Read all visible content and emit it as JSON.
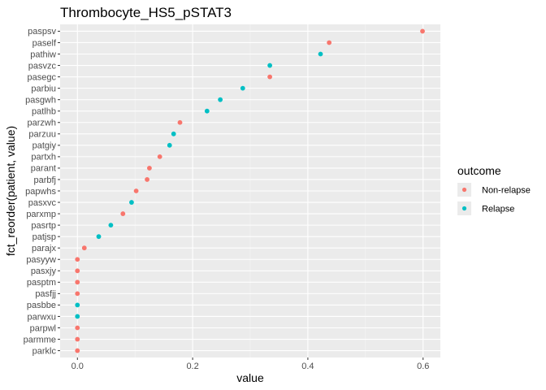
{
  "chart_data": {
    "type": "scatter",
    "title": "Thrombocyte_HS5_pSTAT3",
    "xlabel": "value",
    "ylabel": "fct_reorder(patient, value)",
    "xlim": [
      -0.03,
      0.63
    ],
    "xticks": [
      0.0,
      0.2,
      0.4,
      0.6
    ],
    "xtick_labels": [
      "0.0",
      "0.2",
      "0.4",
      "0.6"
    ],
    "grid": true,
    "legend": {
      "title": "outcome",
      "position": "right",
      "entries": [
        {
          "label": "Non-relapse",
          "color": "#F8766D"
        },
        {
          "label": "Relapse",
          "color": "#00BFC4"
        }
      ]
    },
    "categories": [
      "parklc",
      "parmme",
      "parpwl",
      "parwxu",
      "pasbbe",
      "pasfjj",
      "pasptm",
      "pasxjy",
      "pasyyw",
      "parajx",
      "patjsp",
      "pasrtp",
      "parxmp",
      "pasxvc",
      "papwhs",
      "parbfj",
      "parant",
      "partxh",
      "patgiy",
      "parzuu",
      "parzwh",
      "patlhb",
      "pasgwh",
      "parbiu",
      "pasegc",
      "pasvzc",
      "pathiw",
      "paself",
      "paspsv"
    ],
    "points": [
      {
        "patient": "paspsv",
        "value": 0.599,
        "outcome": "Non-relapse"
      },
      {
        "patient": "paself",
        "value": 0.437,
        "outcome": "Non-relapse"
      },
      {
        "patient": "pathiw",
        "value": 0.422,
        "outcome": "Relapse"
      },
      {
        "patient": "pasvzc",
        "value": 0.334,
        "outcome": "Relapse"
      },
      {
        "patient": "pasegc",
        "value": 0.334,
        "outcome": "Non-relapse"
      },
      {
        "patient": "parbiu",
        "value": 0.287,
        "outcome": "Relapse"
      },
      {
        "patient": "pasgwh",
        "value": 0.248,
        "outcome": "Relapse"
      },
      {
        "patient": "patlhb",
        "value": 0.225,
        "outcome": "Relapse"
      },
      {
        "patient": "parzwh",
        "value": 0.178,
        "outcome": "Non-relapse"
      },
      {
        "patient": "parzuu",
        "value": 0.167,
        "outcome": "Relapse"
      },
      {
        "patient": "patgiy",
        "value": 0.16,
        "outcome": "Relapse"
      },
      {
        "patient": "partxh",
        "value": 0.143,
        "outcome": "Non-relapse"
      },
      {
        "patient": "parant",
        "value": 0.125,
        "outcome": "Non-relapse"
      },
      {
        "patient": "parbfj",
        "value": 0.121,
        "outcome": "Non-relapse"
      },
      {
        "patient": "papwhs",
        "value": 0.102,
        "outcome": "Non-relapse"
      },
      {
        "patient": "pasxvc",
        "value": 0.094,
        "outcome": "Relapse"
      },
      {
        "patient": "parxmp",
        "value": 0.079,
        "outcome": "Non-relapse"
      },
      {
        "patient": "pasrtp",
        "value": 0.058,
        "outcome": "Relapse"
      },
      {
        "patient": "patjsp",
        "value": 0.037,
        "outcome": "Relapse"
      },
      {
        "patient": "parajx",
        "value": 0.012,
        "outcome": "Non-relapse"
      },
      {
        "patient": "pasyyw",
        "value": 0.0,
        "outcome": "Non-relapse"
      },
      {
        "patient": "pasxjy",
        "value": 0.0,
        "outcome": "Non-relapse"
      },
      {
        "patient": "pasptm",
        "value": 0.0,
        "outcome": "Non-relapse"
      },
      {
        "patient": "pasfjj",
        "value": 0.0,
        "outcome": "Non-relapse"
      },
      {
        "patient": "pasbbe",
        "value": 0.0,
        "outcome": "Relapse"
      },
      {
        "patient": "parwxu",
        "value": 0.0,
        "outcome": "Relapse"
      },
      {
        "patient": "parpwl",
        "value": 0.0,
        "outcome": "Non-relapse"
      },
      {
        "patient": "parmme",
        "value": 0.0,
        "outcome": "Non-relapse"
      },
      {
        "patient": "parklc",
        "value": 0.0,
        "outcome": "Non-relapse"
      }
    ]
  }
}
